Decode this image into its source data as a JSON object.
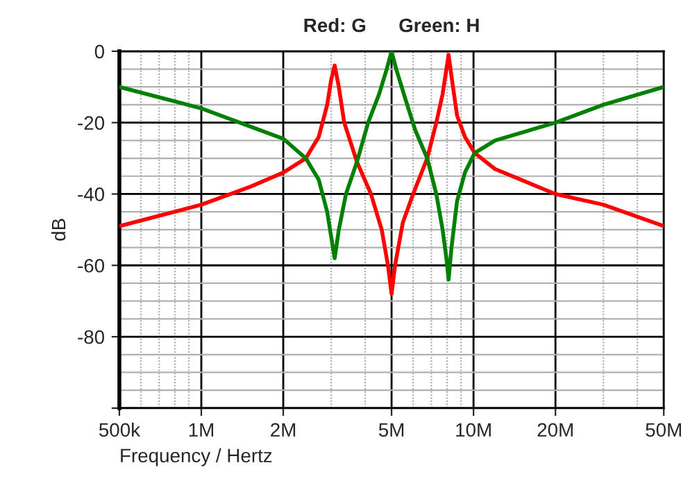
{
  "chart_data": {
    "type": "line",
    "title": "Red: G      Green: H",
    "xlabel": "Frequency / Hertz",
    "ylabel": "dB",
    "log": "x",
    "grid": true,
    "marker": "none",
    "line_style": "solid",
    "xlim": [
      500000,
      50000000
    ],
    "xticks": [
      {
        "value": 500000,
        "label": "500k"
      },
      {
        "value": 1000000,
        "label": "1M"
      },
      {
        "value": 2000000,
        "label": "2M"
      },
      {
        "value": 5000000,
        "label": "5M"
      },
      {
        "value": 10000000,
        "label": "10M"
      },
      {
        "value": 20000000,
        "label": "20M"
      },
      {
        "value": 50000000,
        "label": "50M"
      }
    ],
    "ylim": [
      -100,
      0
    ],
    "yticks": [
      {
        "value": -100,
        "label": null
      },
      -80,
      -60,
      -40,
      -20,
      0
    ],
    "series": [
      {
        "color": "#ff0000",
        "x": [
          500000,
          1000000,
          1510000,
          2000000,
          2420000,
          2700000,
          2900000,
          3000000,
          3090000,
          3200000,
          3350000,
          3730000,
          4200000,
          4600000,
          4850000,
          5000000,
          5150000,
          5500000,
          6000000,
          6760000,
          7300000,
          7700000,
          7950000,
          8100000,
          8300000,
          8700000,
          9300000,
          10100000,
          12000000,
          20000000,
          30000000,
          50000000
        ],
        "values": [
          -49,
          -43,
          -38,
          -34,
          -30,
          -24,
          -15,
          -8,
          -4,
          -10,
          -20,
          -31,
          -40,
          -50,
          -60,
          -68,
          -60,
          -48,
          -40,
          -30,
          -20,
          -12,
          -5,
          -1,
          -7,
          -18,
          -24,
          -28.5,
          -33,
          -40,
          -43,
          -49
        ]
      },
      {
        "color": "#008000",
        "x": [
          500000,
          1000000,
          2000000,
          2420000,
          2700000,
          2900000,
          3000000,
          3090000,
          3200000,
          3400000,
          3730000,
          4100000,
          4500000,
          4800000,
          5000000,
          5200000,
          5600000,
          6100000,
          6760000,
          7300000,
          7700000,
          7950000,
          8100000,
          8300000,
          8700000,
          9300000,
          10100000,
          12000000,
          20000000,
          30000000,
          50000000
        ],
        "values": [
          -10,
          -16,
          -24.5,
          -30,
          -36,
          -45,
          -52,
          -58,
          -50,
          -40,
          -31,
          -20,
          -12,
          -5,
          0,
          -5,
          -13,
          -22,
          -30,
          -40,
          -50,
          -58,
          -64,
          -55,
          -42,
          -34,
          -28.5,
          -25,
          -20,
          -15,
          -10
        ]
      }
    ]
  }
}
